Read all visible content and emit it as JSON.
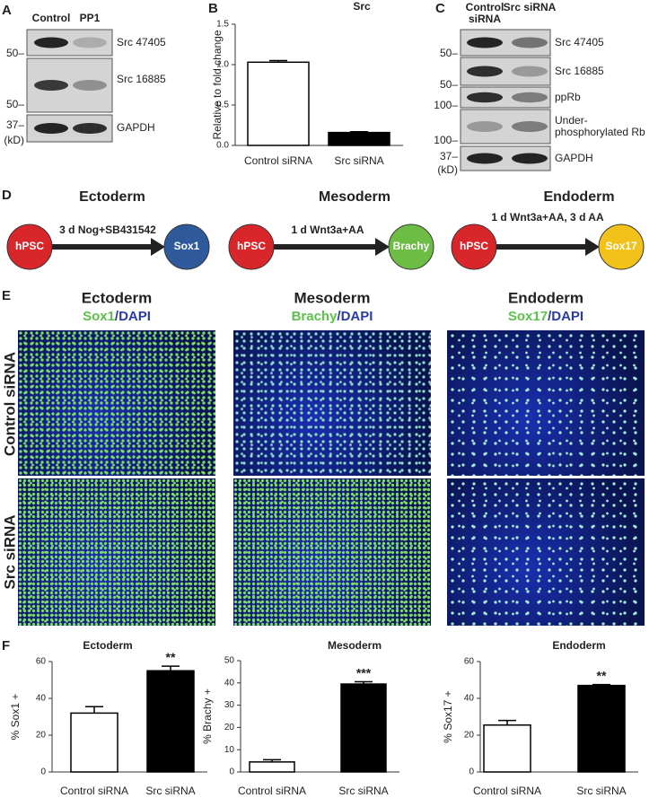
{
  "panel_labels": [
    "A",
    "B",
    "C",
    "D",
    "E",
    "F"
  ],
  "blot_a": {
    "lanes": [
      "Control",
      "PP1"
    ],
    "bands": [
      "Src 47405",
      "Src 16885",
      "GAPDH"
    ],
    "markers": [
      "50–",
      "50–",
      "37–"
    ],
    "unit": "(kD)"
  },
  "blot_c": {
    "lanes": [
      "Control siRNA",
      "Src siRNA"
    ],
    "bands": [
      "Src 47405",
      "Src 16885",
      "ppRb",
      "Under-phosphorylated Rb",
      "GAPDH"
    ],
    "markers": [
      "50–",
      "50–",
      "100–",
      "100–",
      "37–"
    ],
    "unit": "(kD)"
  },
  "diagram": {
    "start": "hPSC",
    "lineages": [
      {
        "title": "Ectoderm",
        "step": "3 d Nog+SB431542",
        "target": "Sox1"
      },
      {
        "title": "Mesoderm",
        "step": "1 d Wnt3a+AA",
        "target": "Brachy"
      },
      {
        "title": "Endoderm",
        "step": "1 d Wnt3a+AA, 3 d AA",
        "target": "Sox17"
      }
    ]
  },
  "images": {
    "columns": [
      {
        "title": "Ectoderm",
        "marker": "Sox1",
        "counterstain": "/DAPI"
      },
      {
        "title": "Mesoderm",
        "marker": "Brachy",
        "counterstain": "/DAPI"
      },
      {
        "title": "Endoderm",
        "marker": "Sox17",
        "counterstain": "/DAPI"
      }
    ],
    "rows": [
      "Control siRNA",
      "Src siRNA"
    ]
  },
  "chart_data": [
    {
      "type": "bar",
      "title": "Src",
      "ylabel": "Relative to fold change",
      "categories": [
        "Control siRNA",
        "Src siRNA"
      ],
      "values": [
        1.03,
        0.16
      ],
      "errors": [
        0.02,
        0.01
      ],
      "colors": [
        "#ffffff",
        "#000000"
      ],
      "ylim": [
        0,
        1.5
      ],
      "yticks": [
        {
          "value": 0,
          "label": "0.0"
        },
        0.5,
        {
          "value": 1,
          "label": "1.0"
        },
        1.5
      ]
    },
    {
      "type": "bar",
      "title": "Ectoderm",
      "ylabel": "% Sox1 +",
      "categories": [
        "Control siRNA",
        "Src siRNA"
      ],
      "values": [
        32,
        55
      ],
      "errors": [
        3.5,
        2.5
      ],
      "colors": [
        "#ffffff",
        "#000000"
      ],
      "ylim": [
        0,
        60
      ],
      "yticks": [
        0,
        20,
        40,
        60
      ],
      "significance": "**"
    },
    {
      "type": "bar",
      "title": "Mesoderm",
      "ylabel": "% Brachy +",
      "categories": [
        "Control siRNA",
        "Src siRNA"
      ],
      "values": [
        4.5,
        39.5
      ],
      "errors": [
        1,
        1
      ],
      "colors": [
        "#ffffff",
        "#000000"
      ],
      "ylim": [
        0,
        50
      ],
      "yticks": [
        0,
        10,
        20,
        30,
        40,
        50
      ],
      "significance": "***"
    },
    {
      "type": "bar",
      "title": "Endoderm",
      "ylabel": "% Sox17 +",
      "categories": [
        "Control siRNA",
        "Src siRNA"
      ],
      "values": [
        25.5,
        47
      ],
      "errors": [
        2.5,
        0.5
      ],
      "colors": [
        "#ffffff",
        "#000000"
      ],
      "ylim": [
        0,
        60
      ],
      "yticks": [
        0,
        20,
        40,
        60
      ],
      "significance": "**"
    }
  ]
}
